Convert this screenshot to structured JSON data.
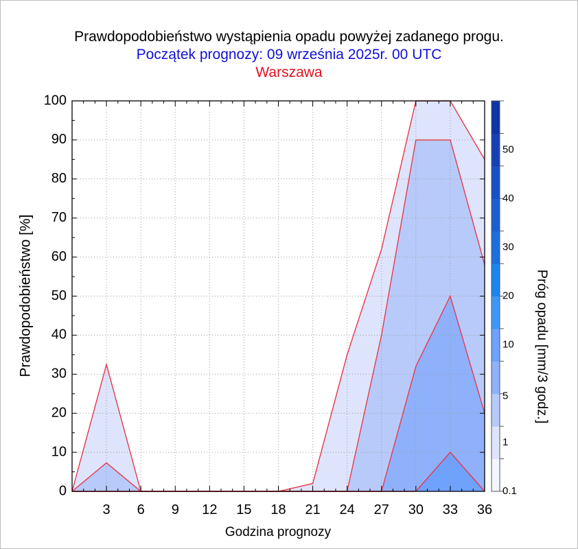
{
  "title": "Prawdopodobieństwo wystąpienia opadu powyżej zadanego progu.",
  "subtitle": "Początek prognozy: 09 września 2025r. 00 UTC",
  "station": "Warszawa",
  "colors": {
    "title": "#000000",
    "subtitle": "#1010d8",
    "station": "#e01020",
    "contour_line": "#e8384a",
    "grid": "#9a9a9a"
  },
  "chart_data": {
    "type": "area",
    "xlabel": "Godzina prognozy",
    "ylabel": "Prawdopodobieństwo [%]",
    "xlim": [
      0,
      36
    ],
    "ylim": [
      0,
      100
    ],
    "x_ticks": [
      "3",
      "6",
      "9",
      "12",
      "15",
      "18",
      "21",
      "24",
      "27",
      "30",
      "33",
      "36"
    ],
    "y_ticks": [
      "0",
      "10",
      "20",
      "30",
      "40",
      "50",
      "60",
      "70",
      "80",
      "90",
      "100"
    ],
    "grid": true,
    "x": [
      0,
      3,
      6,
      9,
      12,
      15,
      18,
      21,
      24,
      27,
      30,
      33,
      36
    ],
    "series": [
      {
        "name": "0.1",
        "color": "#dde4fc",
        "values": [
          0,
          32.5,
          0,
          0,
          0,
          0,
          0,
          2,
          35,
          62,
          100,
          100,
          85
        ]
      },
      {
        "name": "1",
        "color": "#b8cafa",
        "values": [
          0,
          7.3,
          0,
          0,
          0,
          0,
          0,
          0,
          0,
          40,
          90,
          90,
          58
        ]
      },
      {
        "name": "5",
        "color": "#8fb1fb",
        "values": [
          0,
          0,
          0,
          0,
          0,
          0,
          0,
          0,
          0,
          0,
          32,
          50,
          20
        ]
      },
      {
        "name": "10",
        "color": "#6ea2fd",
        "values": [
          0,
          0,
          0,
          0,
          0,
          0,
          0,
          0,
          0,
          0,
          0,
          10,
          0
        ]
      }
    ],
    "colorbar": {
      "label": "Próg opadu [mm/3 godz.]",
      "tick_labels": [
        "0.1",
        "1",
        "5",
        "10",
        "20",
        "30",
        "40",
        "50"
      ],
      "colors": [
        "#f4f6ff",
        "#dde4fc",
        "#b8cafa",
        "#8fb1fb",
        "#6ea2fd",
        "#3c98f6",
        "#1b86ef",
        "#1c6fdc",
        "#1a5fd0",
        "#1750c4",
        "#1442b4",
        "#0d35a3"
      ]
    }
  }
}
